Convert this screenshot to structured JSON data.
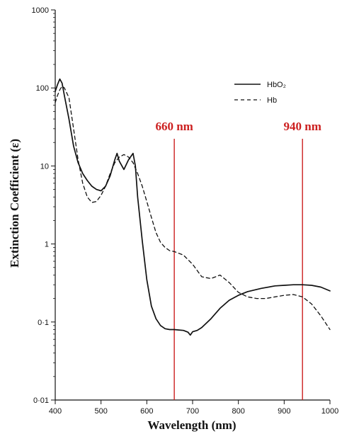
{
  "chart_data": {
    "type": "line",
    "title": "",
    "xlabel": "Wavelength (nm)",
    "ylabel": "Extinction Coefficient (ε)",
    "xlim": [
      400,
      1000
    ],
    "ylim": [
      0.01,
      1000
    ],
    "y_scale": "log",
    "grid": false,
    "legend_position": "top-right",
    "x_ticks": [
      400,
      500,
      600,
      700,
      800,
      900,
      1000
    ],
    "x_tick_labels": [
      "400",
      "500",
      "600",
      "700",
      "800",
      "900",
      "1000"
    ],
    "y_ticks": [
      0.01,
      0.1,
      1,
      10,
      100,
      1000
    ],
    "y_tick_labels": [
      "0·01",
      "0·1",
      "1",
      "10",
      "100",
      "1000"
    ],
    "series": [
      {
        "name": "HbO₂",
        "style": "solid",
        "color": "#111111",
        "x": [
          400,
          405,
          410,
          415,
          420,
          430,
          440,
          450,
          460,
          470,
          480,
          490,
          500,
          510,
          520,
          530,
          535,
          540,
          550,
          560,
          570,
          575,
          580,
          590,
          600,
          610,
          620,
          630,
          640,
          650,
          660,
          670,
          680,
          690,
          695,
          700,
          710,
          720,
          740,
          760,
          780,
          800,
          820,
          850,
          880,
          900,
          920,
          940,
          960,
          980,
          1000
        ],
        "y": [
          90,
          110,
          130,
          115,
          80,
          40,
          18,
          11,
          8,
          6.5,
          5.5,
          5,
          4.8,
          5.5,
          7.5,
          12,
          14.5,
          11.5,
          9,
          12,
          14.5,
          10,
          4,
          1.1,
          0.35,
          0.16,
          0.11,
          0.09,
          0.082,
          0.08,
          0.08,
          0.079,
          0.078,
          0.074,
          0.068,
          0.075,
          0.078,
          0.085,
          0.11,
          0.15,
          0.19,
          0.22,
          0.245,
          0.27,
          0.29,
          0.295,
          0.3,
          0.3,
          0.295,
          0.28,
          0.25
        ]
      },
      {
        "name": "Hb",
        "style": "dashed",
        "color": "#111111",
        "x": [
          400,
          405,
          410,
          415,
          420,
          430,
          440,
          450,
          460,
          470,
          480,
          490,
          500,
          510,
          520,
          530,
          540,
          550,
          560,
          570,
          580,
          590,
          600,
          610,
          620,
          630,
          640,
          650,
          660,
          680,
          700,
          720,
          740,
          760,
          780,
          800,
          820,
          840,
          860,
          880,
          900,
          920,
          940,
          960,
          980,
          1000
        ],
        "y": [
          65,
          80,
          95,
          105,
          100,
          75,
          30,
          12,
          6,
          4,
          3.4,
          3.5,
          4.2,
          5.5,
          8,
          11,
          13,
          14,
          13,
          11,
          8,
          5.5,
          3.5,
          2.2,
          1.4,
          1.05,
          0.9,
          0.82,
          0.8,
          0.72,
          0.55,
          0.38,
          0.36,
          0.4,
          0.32,
          0.24,
          0.21,
          0.2,
          0.2,
          0.21,
          0.22,
          0.225,
          0.21,
          0.17,
          0.12,
          0.08
        ]
      }
    ],
    "annotations": [
      {
        "text": "660 nm",
        "x": 660,
        "color": "#cc1f1f"
      },
      {
        "text": "940 nm",
        "x": 940,
        "color": "#cc1f1f"
      }
    ]
  }
}
